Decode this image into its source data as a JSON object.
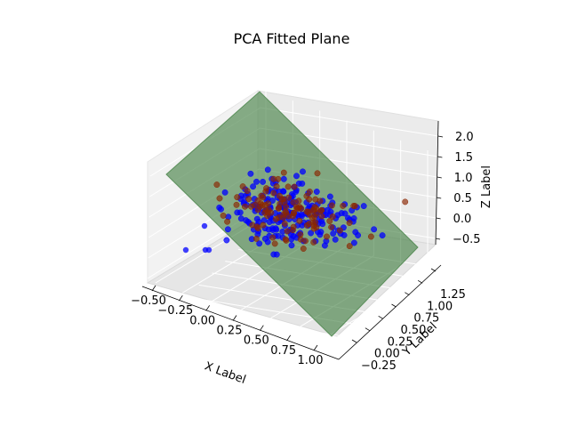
{
  "chart_data": {
    "type": "scatter",
    "title": "PCA Fitted Plane",
    "xlabel": "X Label",
    "ylabel": "Y Label",
    "zlabel": "Z Label",
    "x_ticks": [
      "−0.50",
      "−0.25",
      "0.00",
      "0.25",
      "0.50",
      "0.75",
      "1.00"
    ],
    "y_ticks": [
      "−0.25",
      "0.00",
      "0.25",
      "0.50",
      "0.75",
      "1.00",
      "1.25"
    ],
    "z_ticks": [
      "−0.5",
      "0.0",
      "0.5",
      "1.0",
      "1.5",
      "2.0"
    ],
    "xlim": [
      -0.6,
      1.1
    ],
    "ylim": [
      -0.4,
      1.35
    ],
    "zlim": [
      -1.0,
      2.2
    ],
    "plane_color": "#3b7a3b",
    "series": [
      {
        "color": "#0000ff",
        "points": 200
      },
      {
        "color": "#8b2500",
        "points": 120
      }
    ],
    "grid": true,
    "pane_color": "#f2f2f2"
  }
}
